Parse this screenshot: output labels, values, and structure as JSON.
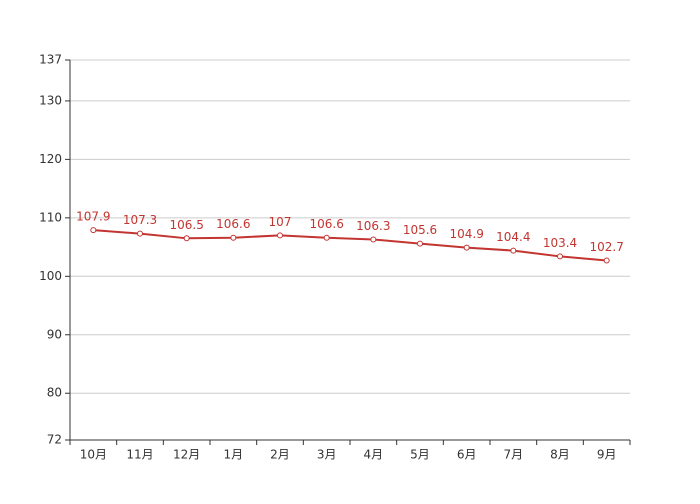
{
  "chart_data": {
    "type": "line",
    "categories": [
      "10月",
      "11月",
      "12月",
      "1月",
      "2月",
      "3月",
      "4月",
      "5月",
      "6月",
      "7月",
      "8月",
      "9月"
    ],
    "values": [
      107.9,
      107.3,
      106.5,
      106.6,
      107,
      106.6,
      106.3,
      105.6,
      104.9,
      104.4,
      103.4,
      102.7
    ],
    "color": "#c23531",
    "ylim": [
      72,
      137
    ],
    "yticks": [
      72,
      80,
      90,
      100,
      110,
      120,
      130,
      137
    ],
    "grid": true
  }
}
